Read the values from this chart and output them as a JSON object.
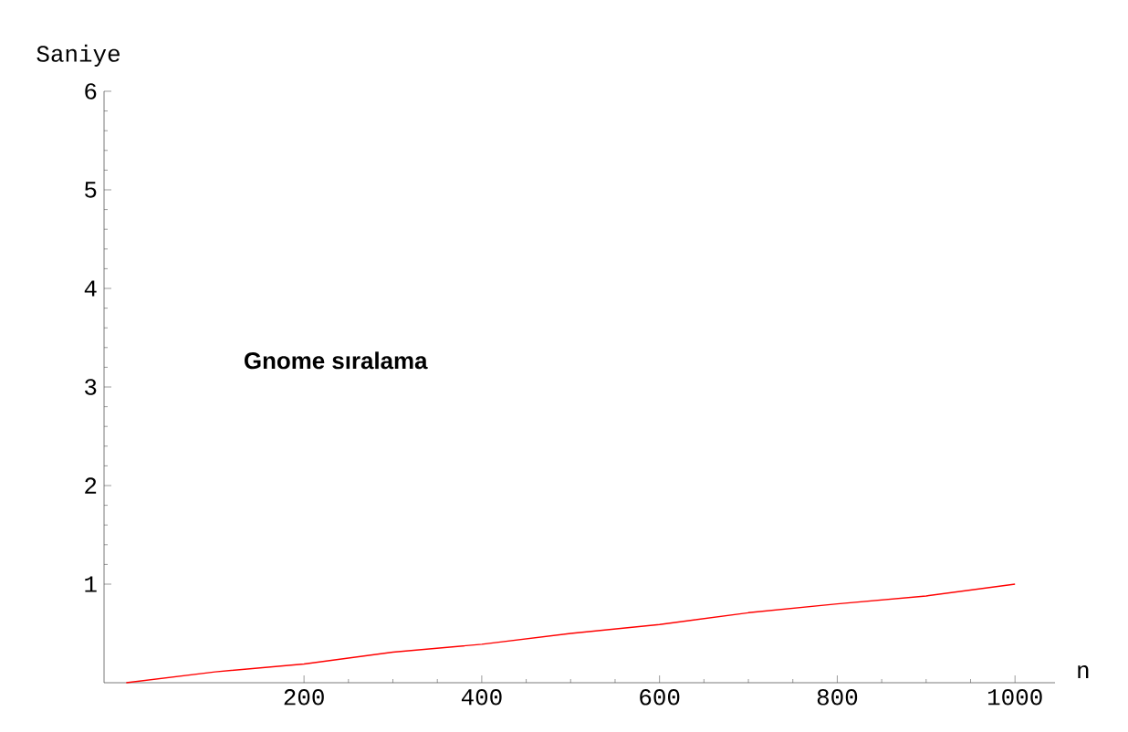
{
  "chart_data": {
    "type": "line",
    "xlabel": "n",
    "ylabel": "Saniye",
    "annotations": [
      "Gnome sıralama"
    ],
    "x": [
      0,
      100,
      200,
      300,
      400,
      500,
      600,
      700,
      800,
      900,
      1000
    ],
    "series": [
      {
        "color": "#ff0000",
        "values": [
          0,
          0.11,
          0.19,
          0.31,
          0.39,
          0.5,
          0.59,
          0.71,
          0.8,
          0.88,
          1.0
        ]
      }
    ],
    "xlim": [
      -25,
      1045
    ],
    "ylim": [
      0,
      6
    ],
    "xticks": [
      200,
      400,
      600,
      800,
      1000
    ],
    "yticks": [
      1,
      2,
      3,
      4,
      5,
      6
    ],
    "grid": false,
    "marker": "none",
    "line_style": "solid"
  }
}
